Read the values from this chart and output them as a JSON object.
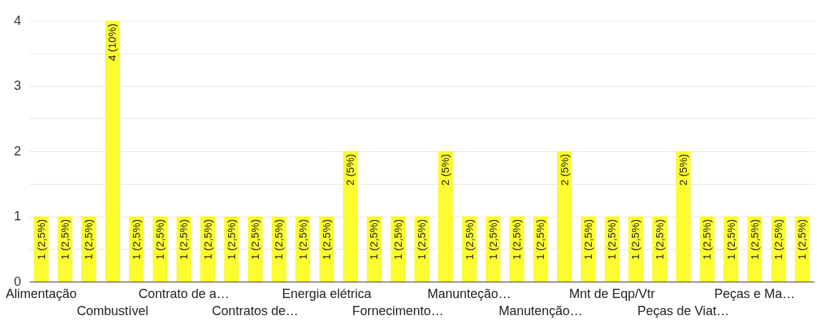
{
  "chart_data": {
    "type": "bar",
    "categories": [
      "Alimentação",
      null,
      null,
      "Combustível",
      null,
      null,
      "Contrato de a…",
      null,
      null,
      "Contratos de…",
      null,
      null,
      "Energia elétrica",
      null,
      null,
      "Fornecimento…",
      null,
      null,
      "Manunteção…",
      null,
      null,
      "Manutenção…",
      null,
      null,
      "Mnt de Eqp/Vtr",
      null,
      null,
      "Peças de Viat…",
      null,
      null,
      "Peças e Ma…",
      null,
      null
    ],
    "values": [
      1,
      1,
      1,
      4,
      1,
      1,
      1,
      1,
      1,
      1,
      1,
      1,
      1,
      2,
      1,
      1,
      1,
      2,
      1,
      1,
      1,
      1,
      2,
      1,
      1,
      1,
      1,
      2,
      1,
      1,
      1,
      1,
      1
    ],
    "value_labels": [
      "1 (2,5%)",
      "1 (2,5%)",
      "1 (2,5%)",
      "4 (10%)",
      "1 (2,5%)",
      "1 (2,5%)",
      "1 (2,5%)",
      "1 (2,5%)",
      "1 (2,5%)",
      "1 (2,5%)",
      "1 (2,5%)",
      "1 (2,5%)",
      "1 (2,5%)",
      "2 (5%)",
      "1 (2,5%)",
      "1 (2,5%)",
      "1 (2,5%)",
      "2 (5%)",
      "1 (2,5%)",
      "1 (2,5%)",
      "1 (2,5%)",
      "1 (2,5%)",
      "2 (5%)",
      "1 (2,5%)",
      "1 (2,5%)",
      "1 (2,5%)",
      "1 (2,5%)",
      "2 (5%)",
      "1 (2,5%)",
      "1 (2,5%)",
      "1 (2,5%)",
      "1 (2,5%)",
      "1 (2,5%)"
    ],
    "color": "#fcfc30",
    "ylim": [
      0,
      4
    ],
    "yticks": [
      0,
      {
        "value": 0.5,
        "label": null
      },
      1,
      {
        "value": 1.5,
        "label": null
      },
      2,
      {
        "value": 2.5,
        "label": null
      },
      3,
      {
        "value": 3.5,
        "label": null
      },
      4
    ],
    "grid": "y"
  }
}
